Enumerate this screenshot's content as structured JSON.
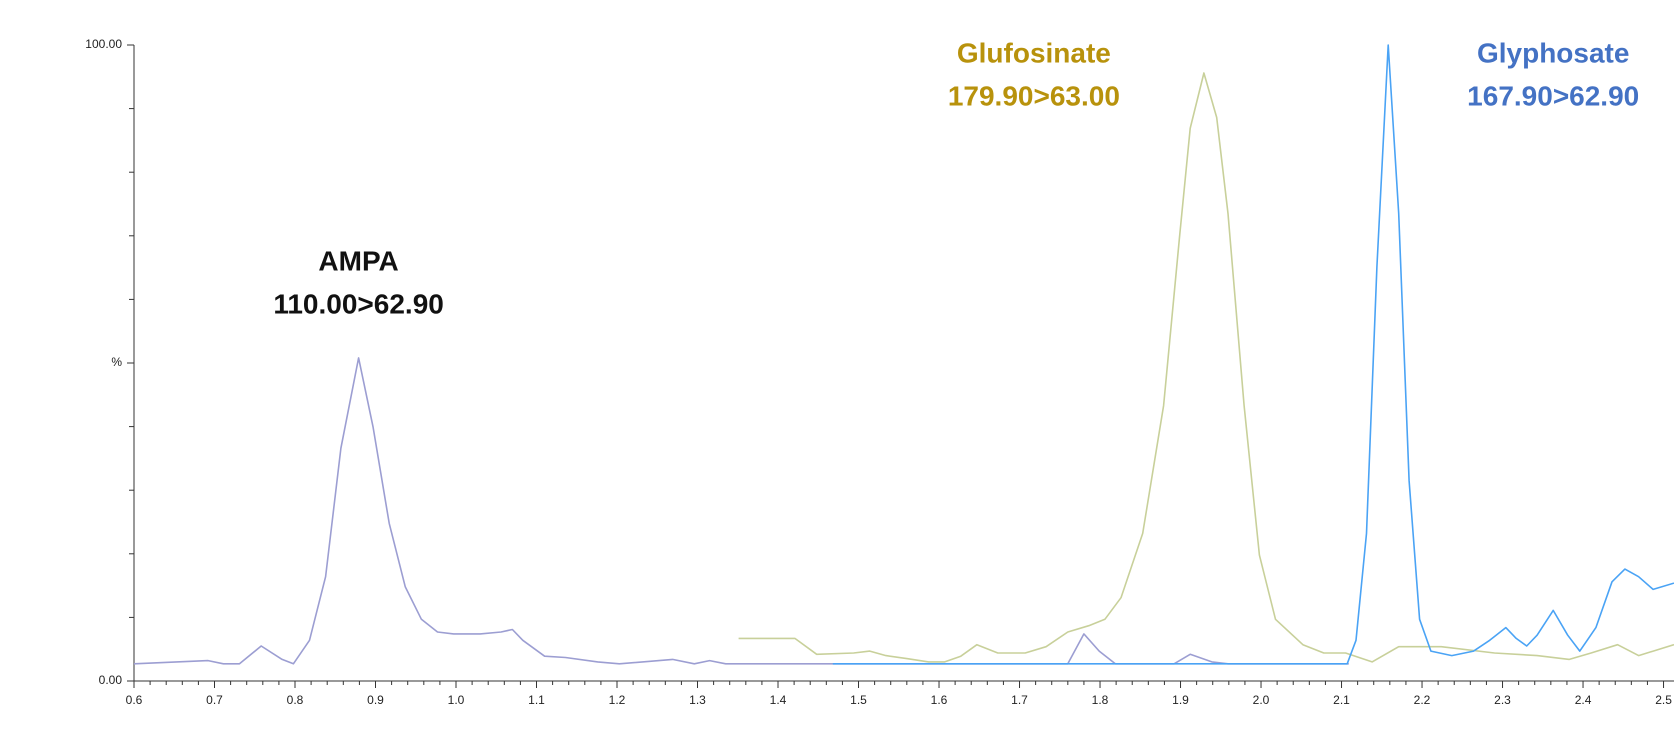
{
  "chart_data": {
    "type": "line",
    "xlim": [
      0.6,
      2.513
    ],
    "ylim": [
      0,
      100
    ],
    "xticks": [
      0.6,
      0.7,
      0.8,
      0.9,
      {
        "value": 1,
        "label": "1.0"
      },
      1.1,
      1.2,
      1.3,
      1.4,
      1.5,
      1.6,
      1.7,
      1.8,
      1.9,
      {
        "value": 2,
        "label": "2.0"
      },
      2.1,
      2.2,
      2.3,
      2.4,
      2.5
    ],
    "xminorticks": [
      0.62,
      0.64,
      0.66,
      0.68,
      0.72,
      0.74,
      0.76,
      0.78,
      0.82,
      0.84,
      0.86,
      0.88,
      0.92,
      0.94,
      0.96,
      0.98,
      1.02,
      1.04,
      1.06,
      1.08,
      1.12,
      1.14,
      1.16,
      1.18,
      1.22,
      1.24,
      1.26,
      1.28,
      1.32,
      1.34,
      1.36,
      1.38,
      1.42,
      1.44,
      1.46,
      1.48,
      1.52,
      1.54,
      1.56,
      1.58,
      1.62,
      1.64,
      1.66,
      1.68,
      1.72,
      1.74,
      1.76,
      1.78,
      1.82,
      1.84,
      1.86,
      1.88,
      1.92,
      1.94,
      1.96,
      1.98,
      2.02,
      2.04,
      2.06,
      2.08,
      2.12,
      2.14,
      2.16,
      2.18,
      2.22,
      2.24,
      2.26,
      2.28,
      2.32,
      2.34,
      2.36,
      2.38,
      2.42,
      2.44,
      2.46,
      2.48
    ],
    "yticks": [
      {
        "value": 0,
        "label": "0.00"
      },
      {
        "value": 50,
        "label": "%"
      },
      {
        "value": 100,
        "label": "100.00"
      }
    ],
    "yminorticks": [
      10,
      20,
      30,
      40,
      60,
      70,
      80,
      90
    ],
    "series": [
      {
        "name": "AMPA",
        "transition": "110.00>62.90",
        "color": "#9c9ed2",
        "label_color": "#111111",
        "x": [
          0.6,
          0.692,
          0.711,
          0.731,
          0.758,
          0.784,
          0.798,
          0.818,
          0.838,
          0.857,
          0.879,
          0.897,
          0.917,
          0.937,
          0.957,
          0.977,
          0.997,
          1.03,
          1.056,
          1.07,
          1.083,
          1.11,
          1.136,
          1.176,
          1.203,
          1.269,
          1.296,
          1.315,
          1.335,
          1.76,
          1.78,
          1.799,
          1.819,
          1.892,
          1.912,
          1.939,
          1.959,
          2.109
        ],
        "values": [
          2.7,
          3.2,
          2.7,
          2.7,
          5.5,
          3.4,
          2.7,
          6.4,
          16.4,
          36.6,
          50.8,
          39.9,
          24.8,
          14.8,
          9.7,
          7.7,
          7.4,
          7.4,
          7.7,
          8.1,
          6.4,
          3.9,
          3.7,
          3.0,
          2.7,
          3.4,
          2.7,
          3.2,
          2.7,
          2.7,
          7.4,
          4.7,
          2.7,
          2.7,
          4.2,
          3.0,
          2.7,
          2.7
        ]
      },
      {
        "name": "Glufosinate",
        "transition": "179.90>63.00",
        "color": "#c8d09a",
        "label_color": "#b8920c",
        "x": [
          1.351,
          1.421,
          1.448,
          1.494,
          1.514,
          1.534,
          1.561,
          1.587,
          1.607,
          1.627,
          1.647,
          1.673,
          1.707,
          1.733,
          1.76,
          1.786,
          1.806,
          1.826,
          1.853,
          1.879,
          1.899,
          1.912,
          1.929,
          1.945,
          1.959,
          1.979,
          1.998,
          2.018,
          2.052,
          2.078,
          2.105,
          2.138,
          2.171,
          2.224,
          2.29,
          2.343,
          2.383,
          2.41,
          2.443,
          2.469,
          2.513
        ],
        "values": [
          6.7,
          6.7,
          4.2,
          4.4,
          4.7,
          4.0,
          3.5,
          3.0,
          3.0,
          3.9,
          5.7,
          4.4,
          4.4,
          5.4,
          7.7,
          8.7,
          9.7,
          13.1,
          23.2,
          43.3,
          70.1,
          86.9,
          95.6,
          88.6,
          73.5,
          43.3,
          19.8,
          9.7,
          5.7,
          4.4,
          4.4,
          3.0,
          5.4,
          5.4,
          4.4,
          4.0,
          3.4,
          4.4,
          5.7,
          4.0,
          5.7
        ]
      },
      {
        "name": "Glyphosate",
        "transition": "167.90>62.90",
        "color": "#4aa3f5",
        "label_color": "#4472c4",
        "x": [
          1.468,
          2.107,
          2.118,
          2.131,
          2.144,
          2.158,
          2.171,
          2.184,
          2.197,
          2.211,
          2.237,
          2.264,
          2.284,
          2.304,
          2.317,
          2.33,
          2.343,
          2.363,
          2.381,
          2.396,
          2.416,
          2.436,
          2.452,
          2.469,
          2.487,
          2.513
        ],
        "values": [
          2.7,
          2.7,
          6.4,
          23.2,
          65.1,
          100,
          73.5,
          31.5,
          9.7,
          4.7,
          4.0,
          4.7,
          6.4,
          8.4,
          6.7,
          5.5,
          7.2,
          11.1,
          7.2,
          4.7,
          8.4,
          15.6,
          17.6,
          16.4,
          14.4,
          15.4
        ]
      }
    ]
  }
}
